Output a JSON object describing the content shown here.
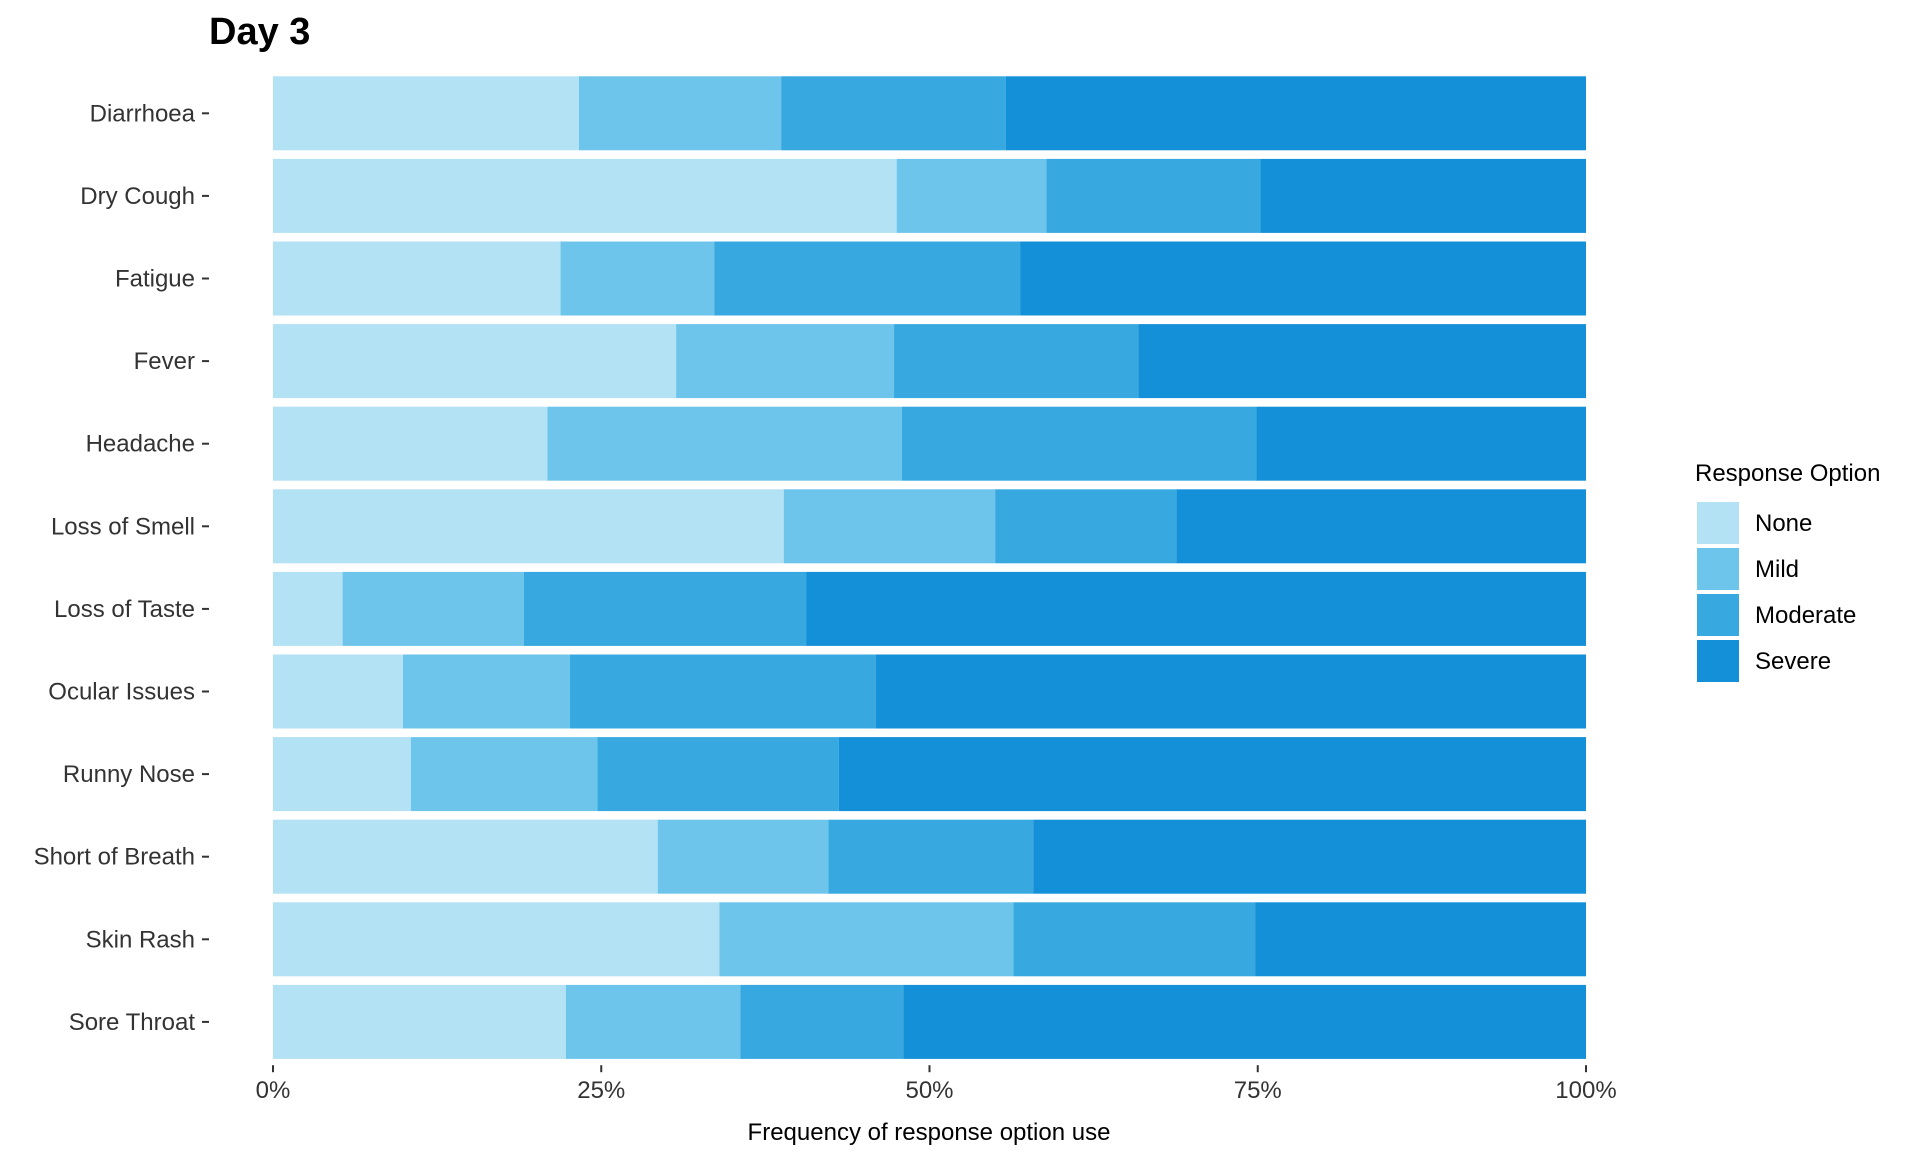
{
  "chart_data": {
    "type": "bar",
    "orientation": "horizontal",
    "stacked": "percent",
    "title": "Day 3",
    "xlabel": "Frequency of response option use",
    "ylabel": "",
    "xlim": [
      0,
      100
    ],
    "x_ticks": [
      0,
      25,
      50,
      75,
      100
    ],
    "x_tick_labels": [
      "0%",
      "25%",
      "50%",
      "75%",
      "100%"
    ],
    "grid": false,
    "legend": {
      "title": "Response Option",
      "position": "right"
    },
    "categories": [
      "Diarrhoea",
      "Dry Cough",
      "Fatigue",
      "Fever",
      "Headache",
      "Loss of Smell",
      "Loss of Taste",
      "Ocular Issues",
      "Runny Nose",
      "Short of Breath",
      "Skin Rash",
      "Sore Throat"
    ],
    "series": [
      {
        "name": "None",
        "color": "#b3e2f4",
        "values": [
          23.3,
          47.5,
          21.9,
          30.7,
          20.9,
          38.9,
          5.3,
          9.9,
          10.5,
          29.3,
          34.0,
          22.3
        ]
      },
      {
        "name": "Mild",
        "color": "#6ec5eb",
        "values": [
          15.4,
          11.4,
          11.7,
          16.6,
          27.0,
          16.1,
          13.8,
          12.7,
          14.2,
          13.0,
          22.4,
          13.3
        ]
      },
      {
        "name": "Moderate",
        "color": "#37a9e0",
        "values": [
          17.1,
          16.3,
          23.3,
          18.6,
          27.0,
          13.8,
          21.5,
          23.3,
          18.4,
          15.6,
          18.4,
          12.4
        ]
      },
      {
        "name": "Severe",
        "color": "#1390d7",
        "values": [
          44.2,
          24.8,
          43.1,
          34.1,
          25.1,
          31.2,
          59.4,
          54.1,
          56.9,
          42.1,
          25.2,
          52.0
        ]
      }
    ]
  }
}
